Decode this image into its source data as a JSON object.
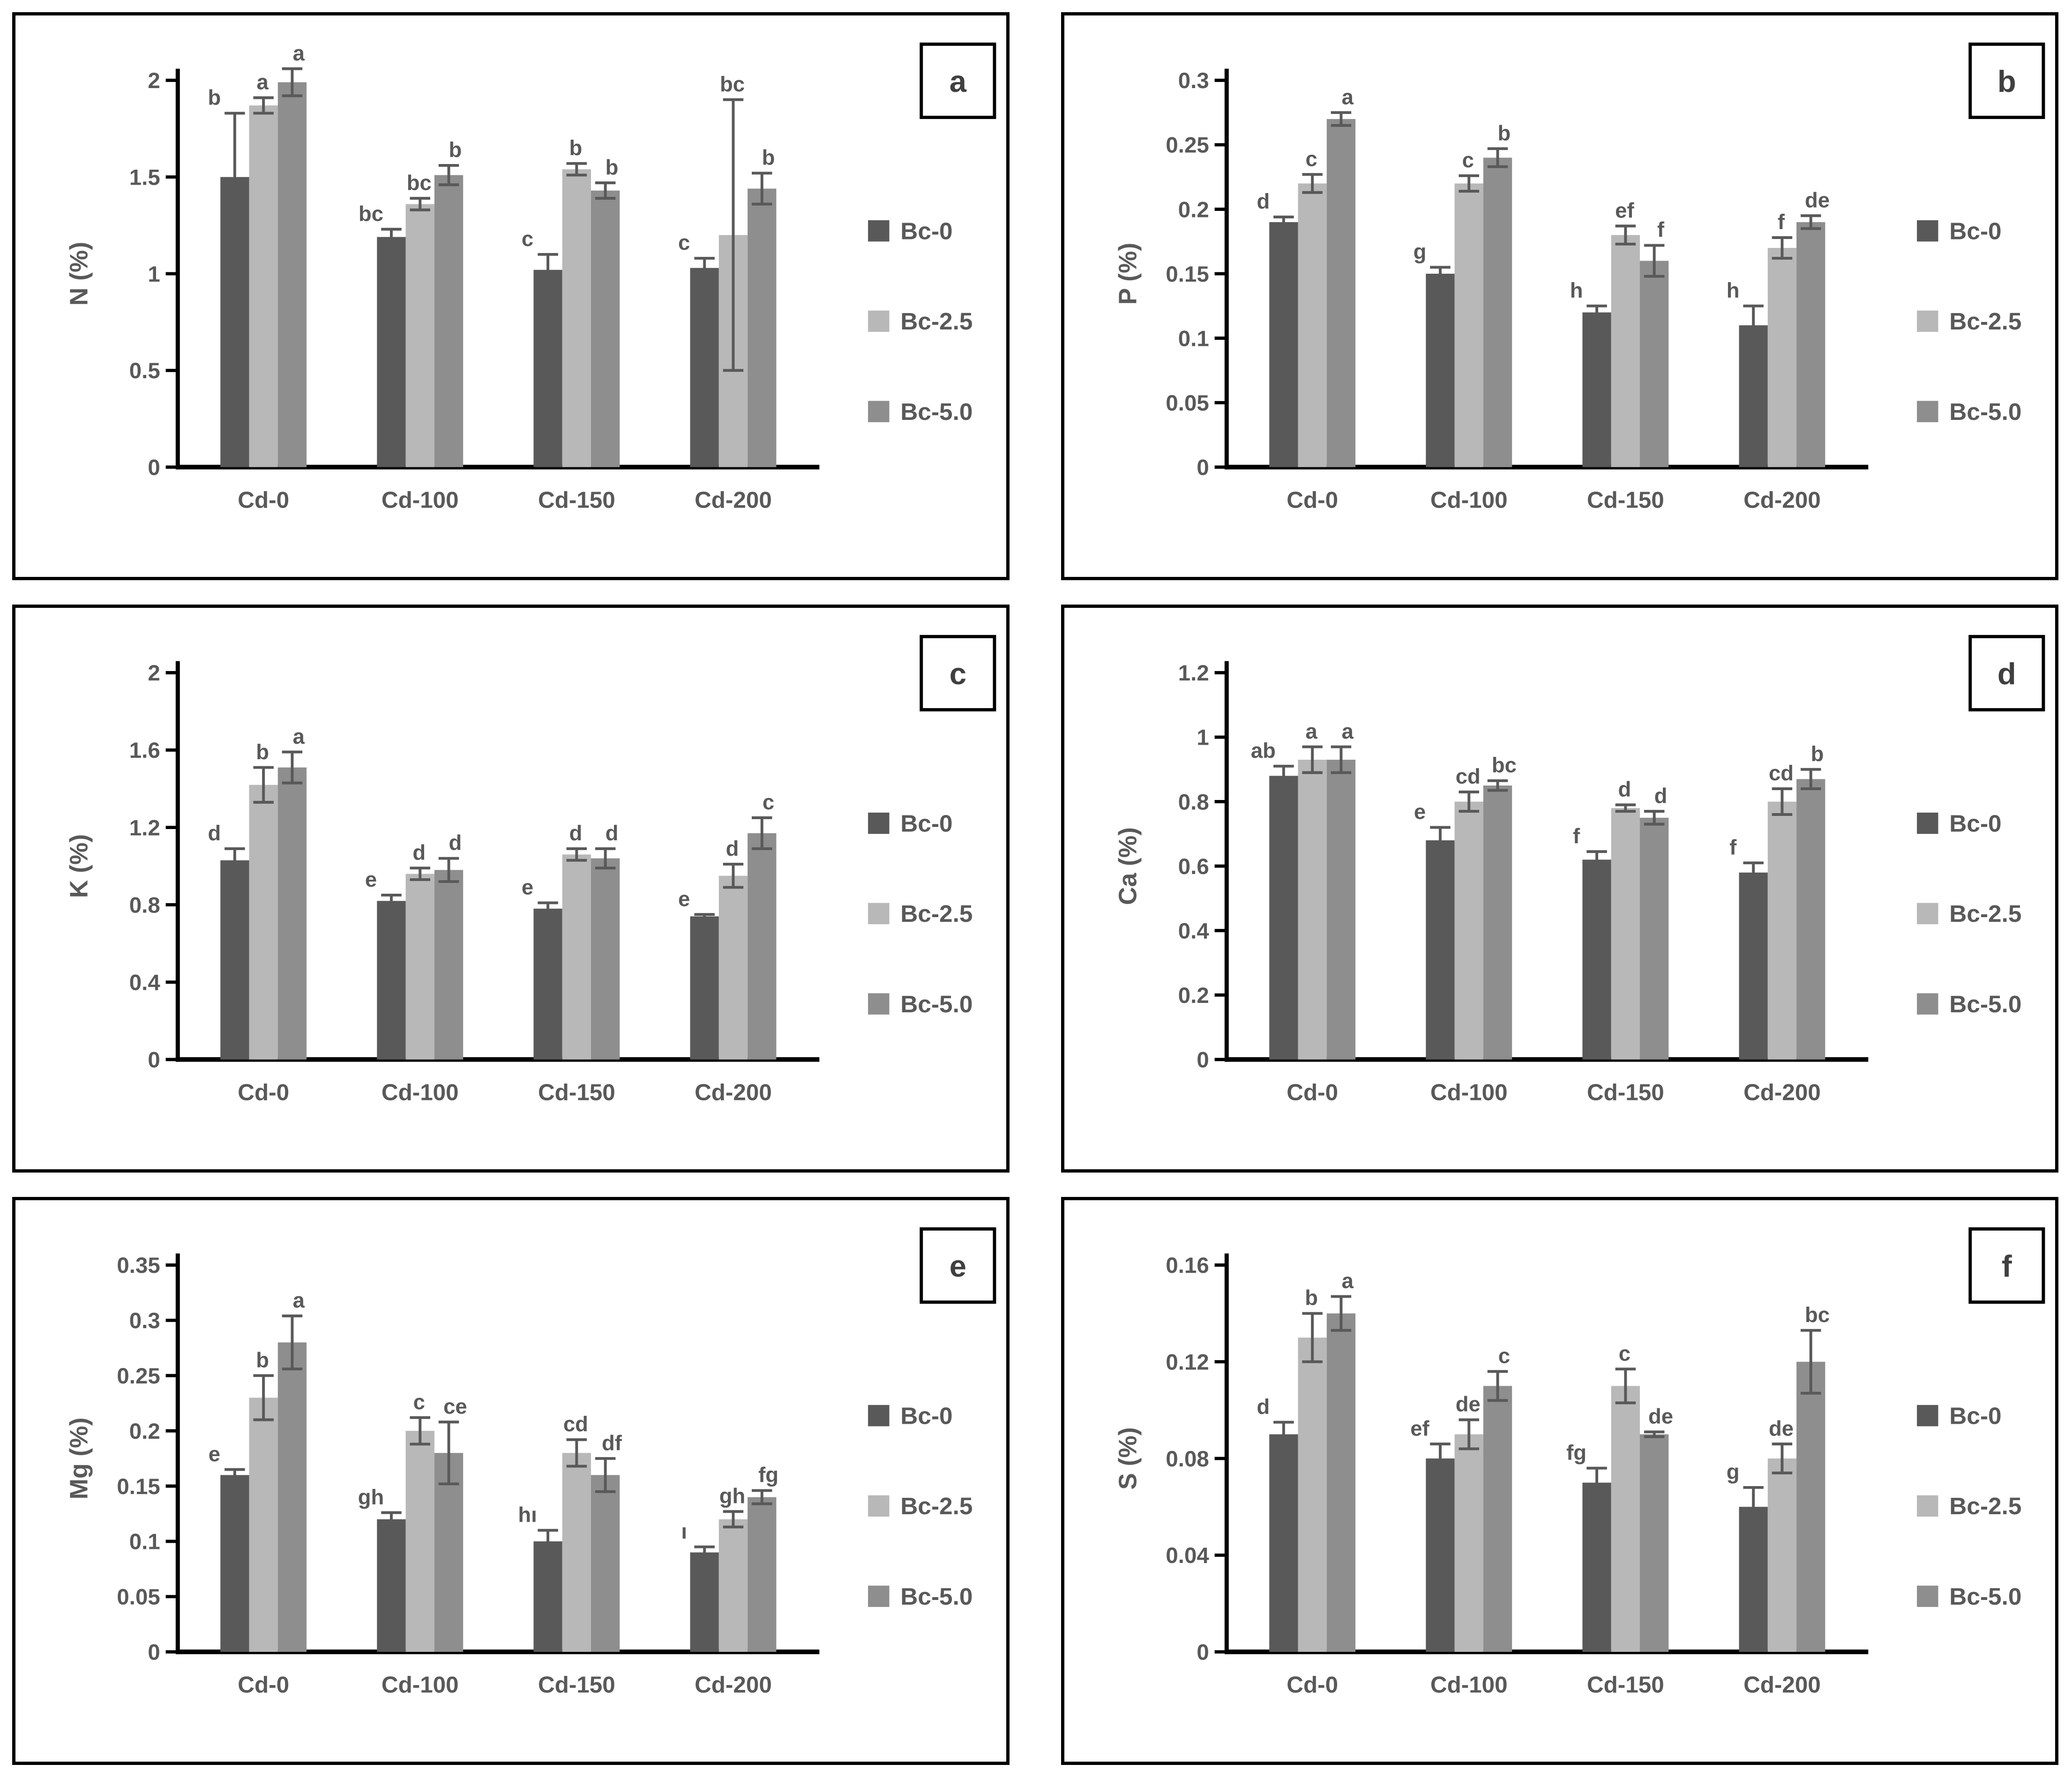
{
  "legend": {
    "position": "right",
    "items": [
      {
        "label": "Bc-0",
        "color": "#595959"
      },
      {
        "label": "Bc-2.5",
        "color": "#b8b8b8"
      },
      {
        "label": "Bc-5.0",
        "color": "#8e8e8e"
      }
    ]
  },
  "style": {
    "axis_color": "#000000",
    "text_color": "#595959",
    "error_color": "#595959",
    "panel_border": "#000000",
    "background": "#ffffff"
  },
  "chart_data": [
    {
      "type": "bar",
      "panel_label": "a",
      "ylabel": "N (%)",
      "ylim": [
        0,
        2
      ],
      "yticks": [
        0,
        0.5,
        1,
        1.5,
        2
      ],
      "categories": [
        "Cd-0",
        "Cd-100",
        "Cd-150",
        "Cd-200"
      ],
      "grid": false,
      "legend_position": "right",
      "series": [
        {
          "name": "Bc-0",
          "values": [
            1.5,
            1.19,
            1.02,
            1.03
          ],
          "errors": [
            0.33,
            0.04,
            0.08,
            0.05
          ],
          "letters": [
            "b",
            "bc",
            "c",
            "c"
          ]
        },
        {
          "name": "Bc-2.5",
          "values": [
            1.87,
            1.36,
            1.54,
            1.2
          ],
          "errors": [
            0.04,
            0.03,
            0.03,
            0.7
          ],
          "letters": [
            "a",
            "bc",
            "b",
            "bc"
          ]
        },
        {
          "name": "Bc-5.0",
          "values": [
            1.99,
            1.51,
            1.43,
            1.44
          ],
          "errors": [
            0.07,
            0.05,
            0.04,
            0.08
          ],
          "letters": [
            "a",
            "b",
            "b",
            "b"
          ]
        }
      ]
    },
    {
      "type": "bar",
      "panel_label": "b",
      "ylabel": "P (%)",
      "ylim": [
        0,
        0.3
      ],
      "yticks": [
        0,
        0.05,
        0.1,
        0.15,
        0.2,
        0.25,
        0.3
      ],
      "categories": [
        "Cd-0",
        "Cd-100",
        "Cd-150",
        "Cd-200"
      ],
      "grid": false,
      "legend_position": "right",
      "series": [
        {
          "name": "Bc-0",
          "values": [
            0.19,
            0.15,
            0.12,
            0.11
          ],
          "errors": [
            0.004,
            0.005,
            0.005,
            0.015
          ],
          "letters": [
            "d",
            "g",
            "h",
            "h"
          ]
        },
        {
          "name": "Bc-2.5",
          "values": [
            0.22,
            0.22,
            0.18,
            0.17
          ],
          "errors": [
            0.007,
            0.006,
            0.007,
            0.008
          ],
          "letters": [
            "c",
            "c",
            "ef",
            "f"
          ]
        },
        {
          "name": "Bc-5.0",
          "values": [
            0.27,
            0.24,
            0.16,
            0.19
          ],
          "errors": [
            0.005,
            0.007,
            0.012,
            0.005
          ],
          "letters": [
            "a",
            "b",
            "f",
            "de"
          ]
        }
      ]
    },
    {
      "type": "bar",
      "panel_label": "c",
      "ylabel": "K (%)",
      "ylim": [
        0,
        2
      ],
      "yticks": [
        0,
        0.4,
        0.8,
        1.2,
        1.6,
        2
      ],
      "categories": [
        "Cd-0",
        "Cd-100",
        "Cd-150",
        "Cd-200"
      ],
      "grid": false,
      "legend_position": "right",
      "series": [
        {
          "name": "Bc-0",
          "values": [
            1.03,
            0.82,
            0.78,
            0.74
          ],
          "errors": [
            0.06,
            0.03,
            0.03,
            0.01
          ],
          "letters": [
            "d",
            "e",
            "e",
            "e"
          ]
        },
        {
          "name": "Bc-2.5",
          "values": [
            1.42,
            0.96,
            1.06,
            0.95
          ],
          "errors": [
            0.09,
            0.03,
            0.03,
            0.06
          ],
          "letters": [
            "b",
            "d",
            "d",
            "d"
          ]
        },
        {
          "name": "Bc-5.0",
          "values": [
            1.51,
            0.98,
            1.04,
            1.17
          ],
          "errors": [
            0.08,
            0.06,
            0.05,
            0.08
          ],
          "letters": [
            "a",
            "d",
            "d",
            "c"
          ]
        }
      ]
    },
    {
      "type": "bar",
      "panel_label": "d",
      "ylabel": "Ca (%)",
      "ylim": [
        0,
        1.2
      ],
      "yticks": [
        0,
        0.2,
        0.4,
        0.6,
        0.8,
        1,
        1.2
      ],
      "categories": [
        "Cd-0",
        "Cd-100",
        "Cd-150",
        "Cd-200"
      ],
      "grid": false,
      "legend_position": "right",
      "series": [
        {
          "name": "Bc-0",
          "values": [
            0.88,
            0.68,
            0.62,
            0.58
          ],
          "errors": [
            0.03,
            0.04,
            0.025,
            0.03
          ],
          "letters": [
            "ab",
            "e",
            "f",
            "f"
          ]
        },
        {
          "name": "Bc-2.5",
          "values": [
            0.93,
            0.8,
            0.78,
            0.8
          ],
          "errors": [
            0.04,
            0.03,
            0.01,
            0.04
          ],
          "letters": [
            "a",
            "cd",
            "d",
            "cd"
          ]
        },
        {
          "name": "Bc-5.0",
          "values": [
            0.93,
            0.85,
            0.75,
            0.87
          ],
          "errors": [
            0.04,
            0.015,
            0.02,
            0.03
          ],
          "letters": [
            "a",
            "bc",
            "d",
            "b"
          ]
        }
      ]
    },
    {
      "type": "bar",
      "panel_label": "e",
      "ylabel": "Mg (%)",
      "ylim": [
        0,
        0.35
      ],
      "yticks": [
        0,
        0.05,
        0.1,
        0.15,
        0.2,
        0.25,
        0.3,
        0.35
      ],
      "categories": [
        "Cd-0",
        "Cd-100",
        "Cd-150",
        "Cd-200"
      ],
      "grid": false,
      "legend_position": "right",
      "series": [
        {
          "name": "Bc-0",
          "values": [
            0.16,
            0.12,
            0.1,
            0.09
          ],
          "errors": [
            0.005,
            0.006,
            0.01,
            0.005
          ],
          "letters": [
            "e",
            "gh",
            "hı",
            "ı"
          ]
        },
        {
          "name": "Bc-2.5",
          "values": [
            0.23,
            0.2,
            0.18,
            0.12
          ],
          "errors": [
            0.02,
            0.012,
            0.012,
            0.007
          ],
          "letters": [
            "b",
            "c",
            "cd",
            "gh"
          ]
        },
        {
          "name": "Bc-5.0",
          "values": [
            0.28,
            0.18,
            0.16,
            0.14
          ],
          "errors": [
            0.024,
            0.028,
            0.015,
            0.006
          ],
          "letters": [
            "a",
            "ce",
            "df",
            "fg"
          ]
        }
      ]
    },
    {
      "type": "bar",
      "panel_label": "f",
      "ylabel": "S (%)",
      "ylim": [
        0,
        0.16
      ],
      "yticks": [
        0,
        0.04,
        0.08,
        0.12,
        0.16
      ],
      "categories": [
        "Cd-0",
        "Cd-100",
        "Cd-150",
        "Cd-200"
      ],
      "grid": false,
      "legend_position": "right",
      "series": [
        {
          "name": "Bc-0",
          "values": [
            0.09,
            0.08,
            0.07,
            0.06
          ],
          "errors": [
            0.005,
            0.006,
            0.006,
            0.008
          ],
          "letters": [
            "d",
            "ef",
            "fg",
            "g"
          ]
        },
        {
          "name": "Bc-2.5",
          "values": [
            0.13,
            0.09,
            0.11,
            0.08
          ],
          "errors": [
            0.01,
            0.006,
            0.007,
            0.006
          ],
          "letters": [
            "b",
            "de",
            "c",
            "de"
          ]
        },
        {
          "name": "Bc-5.0",
          "values": [
            0.14,
            0.11,
            0.09,
            0.12
          ],
          "errors": [
            0.007,
            0.006,
            0.001,
            0.013
          ],
          "letters": [
            "a",
            "c",
            "de",
            "bc"
          ]
        }
      ]
    }
  ]
}
